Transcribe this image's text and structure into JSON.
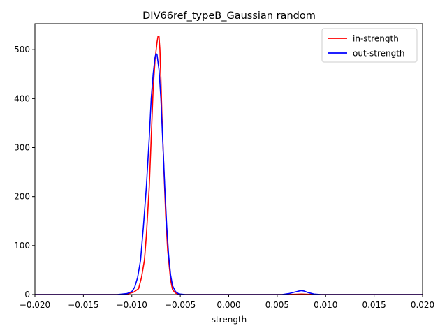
{
  "chart_data": {
    "type": "line",
    "title": "DIV66ref_typeB_Gaussian random",
    "xlabel": "strength",
    "ylabel": "",
    "xlim": [
      -0.02,
      0.02
    ],
    "ylim": [
      0,
      553
    ],
    "x_ticks": [
      -0.02,
      -0.015,
      -0.01,
      -0.005,
      0.0,
      0.005,
      0.01,
      0.015,
      0.02
    ],
    "x_tick_labels": [
      "−0.020",
      "−0.015",
      "−0.010",
      "−0.005",
      "0.000",
      "0.005",
      "0.010",
      "0.015",
      "0.020"
    ],
    "y_ticks": [
      0,
      100,
      200,
      300,
      400,
      500
    ],
    "y_tick_labels": [
      "0",
      "100",
      "200",
      "300",
      "400",
      "500"
    ],
    "grid": false,
    "legend_position": "top-right",
    "series": [
      {
        "name": "in-strength",
        "color": "#ff0000",
        "x": [
          -0.02,
          -0.0115,
          -0.0105,
          -0.0098,
          -0.0093,
          -0.009,
          -0.0087,
          -0.0085,
          -0.0082,
          -0.008,
          -0.0078,
          -0.0076,
          -0.0074,
          -0.0073,
          -0.0072,
          -0.0071,
          -0.007,
          -0.0069,
          -0.0067,
          -0.0065,
          -0.0063,
          -0.006,
          -0.0058,
          -0.0055,
          -0.0052,
          -0.0048,
          -0.0045,
          0.0,
          0.006,
          0.0075,
          0.009,
          0.02
        ],
        "y": [
          0,
          0,
          1,
          5,
          12,
          35,
          70,
          120,
          220,
          320,
          420,
          480,
          515,
          527,
          528,
          500,
          440,
          370,
          260,
          160,
          90,
          30,
          10,
          3,
          1,
          0,
          0,
          0,
          0,
          1,
          0,
          0
        ]
      },
      {
        "name": "out-strength",
        "color": "#0000ff",
        "x": [
          -0.02,
          -0.0115,
          -0.0105,
          -0.01,
          -0.0097,
          -0.0094,
          -0.0091,
          -0.0088,
          -0.0085,
          -0.0082,
          -0.008,
          -0.0078,
          -0.0076,
          -0.0075,
          -0.0074,
          -0.0072,
          -0.007,
          -0.0068,
          -0.0066,
          -0.0064,
          -0.0062,
          -0.006,
          -0.0058,
          -0.0055,
          -0.0052,
          -0.005,
          -0.0045,
          0.0,
          0.0055,
          0.0062,
          0.0068,
          0.0072,
          0.0075,
          0.0078,
          0.0082,
          0.0088,
          0.0095,
          0.02
        ],
        "y": [
          0,
          0,
          2,
          6,
          15,
          35,
          70,
          140,
          220,
          320,
          400,
          450,
          485,
          492,
          490,
          460,
          400,
          310,
          220,
          140,
          80,
          40,
          18,
          6,
          2,
          1,
          0,
          0,
          0,
          2,
          5,
          7,
          8,
          7,
          4,
          1,
          0,
          0
        ]
      }
    ]
  }
}
